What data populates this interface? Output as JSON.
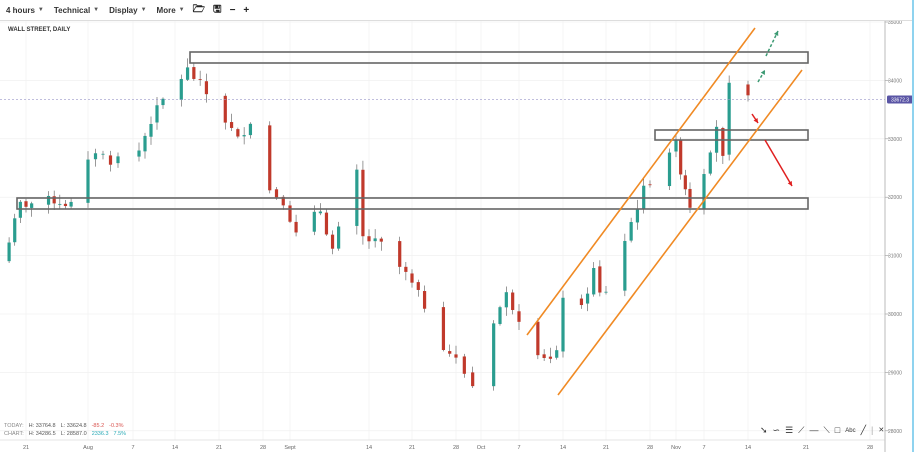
{
  "toolbar": {
    "menus": [
      "4 hours",
      "Technical",
      "Display",
      "More"
    ],
    "icons": [
      "folder-open-icon",
      "save-icon",
      "zoom-out-icon",
      "zoom-in-icon"
    ]
  },
  "stats": {
    "today_label": "TODAY:",
    "today_high": "H: 33764.8",
    "today_low": "L: 33624.8",
    "today_change": "-85.2",
    "today_pct": "-0.3%",
    "chart_label": "CHART:",
    "chart_high": "H: 34286.5",
    "chart_low": "L: 28587.0",
    "chart_change": "2336.3",
    "chart_pct": "7.5%"
  },
  "drawing_tools": [
    "pointer-arrow-icon",
    "curve-icon",
    "fibonacci-icon",
    "gann-fan-icon",
    "horizontal-line-icon",
    "trend-line-icon",
    "rectangle-icon",
    "text-label-icon",
    "line-icon",
    "separator",
    "close-icon"
  ],
  "drawing_tool_text": "Abc",
  "colors": {
    "up": "#2a9d8f",
    "down": "#c0392b",
    "channel": "#f08a24",
    "box": "#666666",
    "price_tag": "#5a55a5",
    "arrow_up": "#3c9a73",
    "arrow_down": "#e02020"
  },
  "chart_data": {
    "type": "candlestick",
    "title": "WALL STREET, DAILY",
    "current_price": "33672.3",
    "current_price_value": 33672.3,
    "ylim": [
      28000,
      35000
    ],
    "y_ticks": [
      "35000",
      "34000",
      "33000",
      "32000",
      "31000",
      "30000",
      "29000",
      "28000"
    ],
    "x_ticks": [
      "21",
      "Aug",
      "7",
      "14",
      "21",
      "28",
      "Sept",
      "14",
      "21",
      "28",
      "Oct",
      "7",
      "14",
      "21",
      "28",
      "Nov",
      "7",
      "14",
      "21",
      "28"
    ],
    "grid": true,
    "close_waypoints": [
      [
        "2022-07-18",
        31270
      ],
      [
        "2022-07-20",
        31870
      ],
      [
        "2022-07-26",
        31950
      ],
      [
        "2022-07-29",
        31870
      ],
      [
        "2022-08-02",
        32800
      ],
      [
        "2022-08-04",
        32630
      ],
      [
        "2022-08-08",
        32800
      ],
      [
        "2022-08-10",
        33320
      ],
      [
        "2022-08-12",
        33660
      ],
      [
        "2022-08-16",
        34180
      ],
      [
        "2022-08-18",
        33920
      ],
      [
        "2022-08-22",
        33320
      ],
      [
        "2022-08-24",
        32980
      ],
      [
        "2022-08-26",
        33320
      ],
      [
        "2022-08-29",
        32120
      ],
      [
        "2022-08-31",
        31950
      ],
      [
        "2022-09-02",
        31350
      ],
      [
        "2022-09-06",
        31780
      ],
      [
        "2022-09-08",
        31100
      ],
      [
        "2022-09-12",
        32400
      ],
      [
        "2022-09-13",
        31300
      ],
      [
        "2022-09-16",
        31180
      ],
      [
        "2022-09-20",
        30670
      ],
      [
        "2022-09-23",
        30150
      ],
      [
        "2022-09-26",
        29470
      ],
      [
        "2022-09-28",
        29210
      ],
      [
        "2022-09-30",
        28780
      ],
      [
        "2022-10-03",
        29900
      ],
      [
        "2022-10-05",
        30330
      ],
      [
        "2022-10-10",
        29380
      ],
      [
        "2022-10-12",
        29210
      ],
      [
        "2022-10-13",
        29300
      ],
      [
        "2022-10-14",
        30330
      ],
      [
        "2022-10-17",
        30070
      ],
      [
        "2022-10-19",
        30750
      ],
      [
        "2022-10-20",
        30330
      ],
      [
        "2022-10-21",
        30410
      ],
      [
        "2022-10-24",
        31270
      ],
      [
        "2022-10-26",
        31870
      ],
      [
        "2022-10-27",
        32120
      ],
      [
        "2022-10-31",
        32810
      ],
      [
        "2022-11-01",
        32900
      ],
      [
        "2022-11-02",
        32470
      ],
      [
        "2022-11-04",
        31870
      ],
      [
        "2022-11-07",
        32470
      ],
      [
        "2022-11-09",
        33240
      ],
      [
        "2022-11-10",
        32640
      ],
      [
        "2022-11-11",
        33870
      ],
      [
        "2022-11-14",
        33670
      ]
    ]
  }
}
